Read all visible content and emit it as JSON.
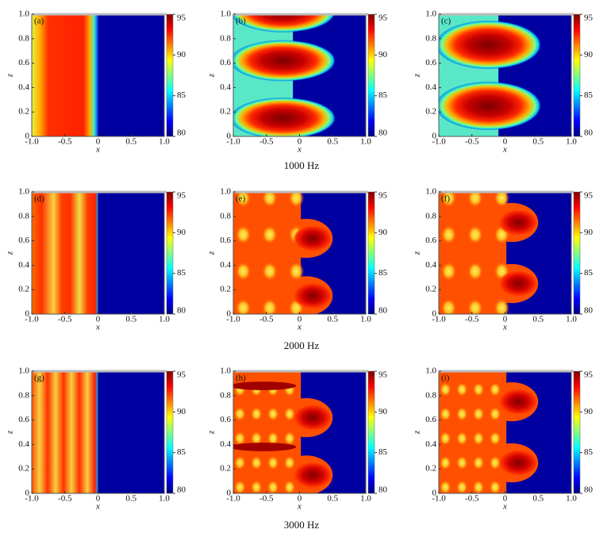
{
  "captions": [
    "1000 Hz",
    "2000 Hz",
    "3000 Hz"
  ],
  "chart_data": [
    {
      "type": "heatmap",
      "label": "(a)",
      "xlabel": "x",
      "ylabel": "z",
      "xlim": [
        -1,
        1
      ],
      "xticks": [
        {
          "value": -1,
          "label": "-1.0"
        },
        -0.5,
        0,
        0.5,
        {
          "value": 1,
          "label": "1.0"
        }
      ],
      "ylim": [
        0,
        1
      ],
      "yticks": [
        0,
        0.2,
        0.4,
        0.6,
        0.8,
        {
          "value": 1,
          "label": "1.0"
        }
      ],
      "clim": [
        80,
        95
      ],
      "cticks": [
        80,
        85,
        90,
        95
      ]
    },
    {
      "type": "heatmap",
      "label": "(b)",
      "xlabel": "x",
      "ylabel": "z",
      "xlim": [
        -1,
        1
      ],
      "xticks": [
        {
          "value": -1,
          "label": "-1.0"
        },
        -0.5,
        0,
        0.5,
        {
          "value": 1,
          "label": "1.0"
        }
      ],
      "ylim": [
        0,
        1
      ],
      "yticks": [
        0,
        0.2,
        0.4,
        0.6,
        0.8,
        {
          "value": 1,
          "label": "1.0"
        }
      ],
      "clim": [
        80,
        95
      ],
      "cticks": [
        80,
        85,
        90,
        95
      ]
    },
    {
      "type": "heatmap",
      "label": "(c)",
      "xlabel": "x",
      "ylabel": "z",
      "xlim": [
        -1,
        1
      ],
      "xticks": [
        {
          "value": -1,
          "label": "-1.0"
        },
        -0.5,
        0,
        0.5,
        {
          "value": 1,
          "label": "1.0"
        }
      ],
      "ylim": [
        0,
        1
      ],
      "yticks": [
        0,
        0.2,
        0.4,
        0.6,
        0.8,
        {
          "value": 1,
          "label": "1.0"
        }
      ],
      "clim": [
        80,
        95
      ],
      "cticks": [
        80,
        85,
        90,
        95
      ]
    },
    {
      "type": "heatmap",
      "label": "(d)",
      "xlabel": "x",
      "ylabel": "z",
      "xlim": [
        -1,
        1
      ],
      "xticks": [
        {
          "value": -1,
          "label": "-1.0"
        },
        -0.5,
        0,
        0.5,
        {
          "value": 1,
          "label": "1.0"
        }
      ],
      "ylim": [
        0,
        1
      ],
      "yticks": [
        0,
        0.2,
        0.4,
        0.6,
        0.8,
        {
          "value": 1,
          "label": "1.0"
        }
      ],
      "clim": [
        80,
        95
      ],
      "cticks": [
        80,
        85,
        90,
        95
      ]
    },
    {
      "type": "heatmap",
      "label": "(e)",
      "xlabel": "x",
      "ylabel": "z",
      "xlim": [
        -1,
        1
      ],
      "xticks": [
        {
          "value": -1,
          "label": "-1.0"
        },
        -0.5,
        0,
        0.5,
        {
          "value": 1,
          "label": "1.0"
        }
      ],
      "ylim": [
        0,
        1
      ],
      "yticks": [
        0,
        0.2,
        0.4,
        0.6,
        0.8,
        {
          "value": 1,
          "label": "1.0"
        }
      ],
      "clim": [
        80,
        95
      ],
      "cticks": [
        80,
        85,
        90,
        95
      ]
    },
    {
      "type": "heatmap",
      "label": "(f)",
      "xlabel": "x",
      "ylabel": "z",
      "xlim": [
        -1,
        1
      ],
      "xticks": [
        {
          "value": -1,
          "label": "-1.0"
        },
        -0.5,
        0,
        0.5,
        {
          "value": 1,
          "label": "1.0"
        }
      ],
      "ylim": [
        0,
        1
      ],
      "yticks": [
        0,
        0.2,
        0.4,
        0.6,
        0.8,
        {
          "value": 1,
          "label": "1.0"
        }
      ],
      "clim": [
        80,
        95
      ],
      "cticks": [
        80,
        85,
        90,
        95
      ]
    },
    {
      "type": "heatmap",
      "label": "(g)",
      "xlabel": "x",
      "ylabel": "z",
      "xlim": [
        -1,
        1
      ],
      "xticks": [
        {
          "value": -1,
          "label": "-1.0"
        },
        -0.5,
        0,
        0.5,
        {
          "value": 1,
          "label": "1.0"
        }
      ],
      "ylim": [
        0,
        1
      ],
      "yticks": [
        0,
        0.2,
        0.4,
        0.6,
        0.8,
        {
          "value": 1,
          "label": "1.0"
        }
      ],
      "clim": [
        80,
        95
      ],
      "cticks": [
        80,
        85,
        90,
        95
      ]
    },
    {
      "type": "heatmap",
      "label": "(h)",
      "xlabel": "x",
      "ylabel": "z",
      "xlim": [
        -1,
        1
      ],
      "xticks": [
        {
          "value": -1,
          "label": "-1.0"
        },
        -0.5,
        0,
        0.5,
        {
          "value": 1,
          "label": "1.0"
        }
      ],
      "ylim": [
        0,
        1
      ],
      "yticks": [
        0,
        0.2,
        0.4,
        0.6,
        0.8,
        {
          "value": 1,
          "label": "1.0"
        }
      ],
      "clim": [
        80,
        95
      ],
      "cticks": [
        80,
        85,
        90,
        95
      ]
    },
    {
      "type": "heatmap",
      "label": "(i)",
      "xlabel": "x",
      "ylabel": "z",
      "xlim": [
        -1,
        1
      ],
      "xticks": [
        {
          "value": -1,
          "label": "-1.0"
        },
        -0.5,
        0,
        0.5,
        {
          "value": 1,
          "label": "1.0"
        }
      ],
      "ylim": [
        0,
        1
      ],
      "yticks": [
        0,
        0.2,
        0.4,
        0.6,
        0.8,
        {
          "value": 1,
          "label": "1.0"
        }
      ],
      "clim": [
        80,
        95
      ],
      "cticks": [
        80,
        85,
        90,
        95
      ]
    }
  ]
}
